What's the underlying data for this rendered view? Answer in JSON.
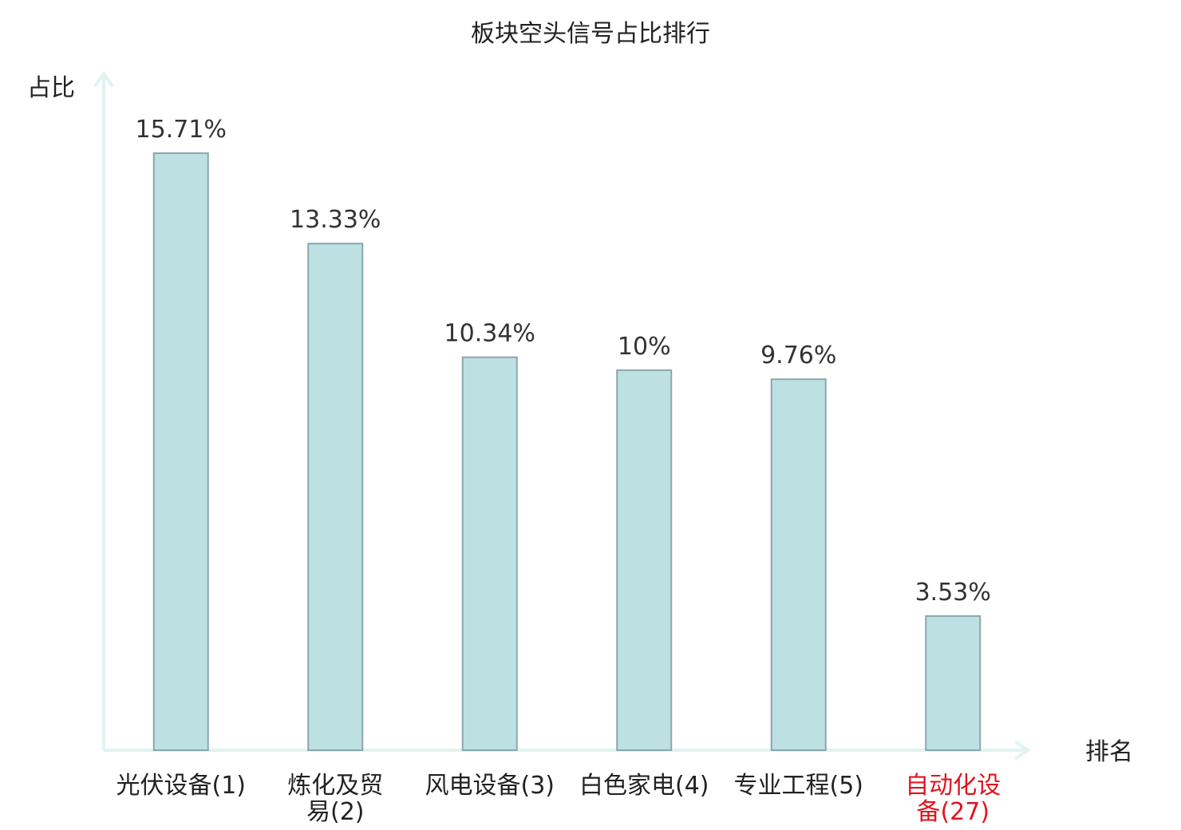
{
  "chart_data": {
    "type": "bar",
    "title": "板块空头信号占比排行",
    "ylabel": "占比",
    "xlabel": "排名",
    "ylim": [
      0,
      16.8
    ],
    "categories": [
      [
        "光伏设备(1)"
      ],
      [
        "炼化及贸",
        "易(2)"
      ],
      [
        "风电设备(3)"
      ],
      [
        "白色家电(4)"
      ],
      [
        "专业工程(5)"
      ],
      [
        "自动化设",
        "备(27)"
      ]
    ],
    "values": [
      15.71,
      13.33,
      10.34,
      10,
      9.76,
      3.53
    ],
    "value_labels": [
      "15.71%",
      "13.33%",
      "10.34%",
      "10%",
      "9.76%",
      "3.53%"
    ],
    "highlight_index": 5,
    "grid": false,
    "colors": {
      "bar_fill": "#bde0e2",
      "bar_stroke": "#8aa7aa",
      "axis": "#e0f3f1",
      "text": "#222222",
      "highlight": "#e0141e"
    }
  }
}
